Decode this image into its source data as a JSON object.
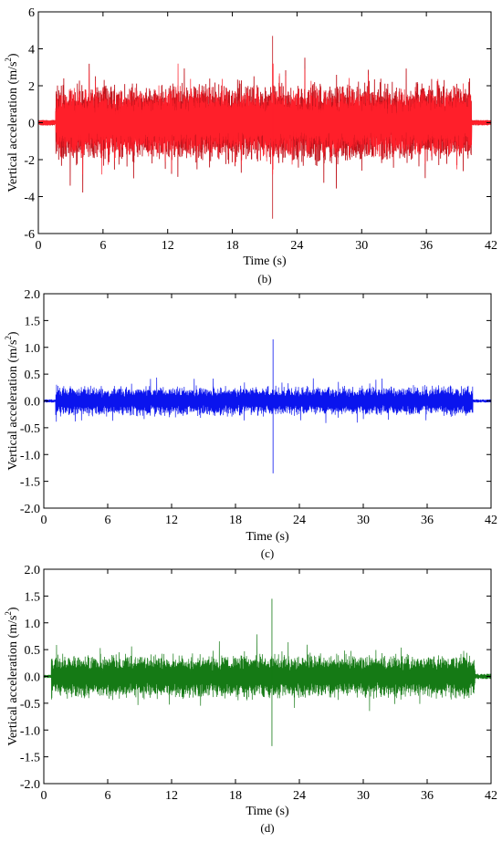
{
  "chart_data": [
    {
      "panel": "(b)",
      "type": "line",
      "xlabel": "Time (s)",
      "ylabel_main": "Vertical acceleration (m/s",
      "ylabel_sup": "2",
      "ylabel_tail": ")",
      "xlim": [
        0,
        42
      ],
      "ylim": [
        -6,
        6
      ],
      "xticks": [
        0,
        6,
        12,
        18,
        24,
        30,
        36,
        42
      ],
      "yticks": [
        -6,
        -4,
        -2,
        0,
        2,
        4,
        6
      ],
      "series": [
        {
          "color": "#c0141c",
          "role": "back",
          "signal_start": 1.6,
          "signal_end": 40.2,
          "amplitude_typical": 2.4,
          "peak_positive": 4.7,
          "peak_negative": -5.2,
          "noise_before": 0.15,
          "noise_after": 0.15
        },
        {
          "color": "#ff1f2a",
          "role": "front",
          "signal_start": 1.6,
          "signal_end": 40.2,
          "amplitude_typical": 2.0,
          "peak_positive": 3.2,
          "peak_negative": -2.8,
          "noise_before": 0.15,
          "noise_after": 0.15
        }
      ]
    },
    {
      "panel": "(c)",
      "type": "line",
      "xlabel": "Time (s)",
      "ylabel_main": "Vertical acceleration (m/s",
      "ylabel_sup": "2",
      "ylabel_tail": ")",
      "xlim": [
        0,
        42
      ],
      "ylim": [
        -2.0,
        2.0
      ],
      "xticks": [
        0,
        6,
        12,
        18,
        24,
        30,
        36,
        42
      ],
      "yticks": [
        -2.0,
        -1.5,
        -1.0,
        -0.5,
        0.0,
        0.5,
        1.0,
        1.5,
        2.0
      ],
      "series": [
        {
          "color": "#0a14ee",
          "role": "front",
          "signal_start": 1.1,
          "signal_end": 40.3,
          "amplitude_typical": 0.3,
          "peak_positive": 1.15,
          "peak_negative": -1.35,
          "noise_before": 0.03,
          "noise_after": 0.03
        }
      ]
    },
    {
      "panel": "(d)",
      "type": "line",
      "xlabel": "Time (s)",
      "ylabel_main": "Vertical acceleration (m/s",
      "ylabel_sup": "2",
      "ylabel_tail": ")",
      "xlim": [
        0,
        42
      ],
      "ylim": [
        -2.0,
        2.0
      ],
      "xticks": [
        0,
        6,
        12,
        18,
        24,
        30,
        36,
        42
      ],
      "yticks": [
        -2.0,
        -1.5,
        -1.0,
        -0.5,
        0.0,
        0.5,
        1.0,
        1.5,
        2.0
      ],
      "series": [
        {
          "color": "#157a15",
          "role": "front",
          "signal_start": 0.7,
          "signal_end": 40.5,
          "amplitude_typical": 0.45,
          "peak_positive": 1.45,
          "peak_negative": -1.3,
          "noise_before": 0.03,
          "noise_after": 0.05
        }
      ]
    }
  ]
}
